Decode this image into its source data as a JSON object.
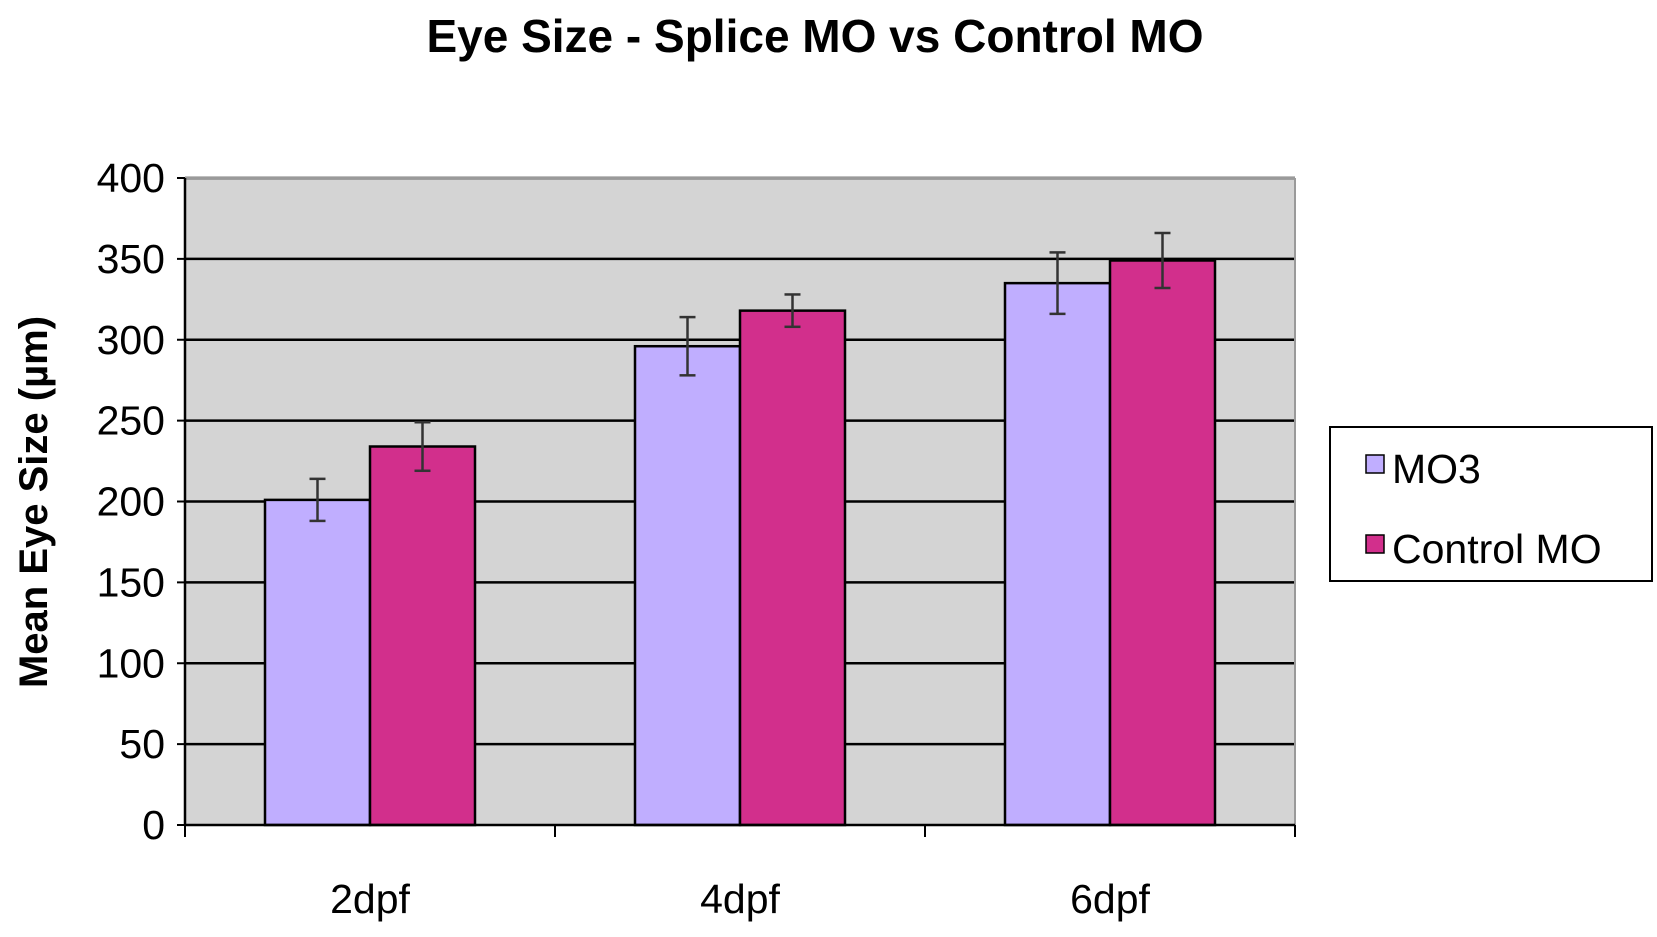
{
  "chart_data": {
    "type": "bar",
    "title": "Eye Size - Splice MO vs Control MO",
    "xlabel": "",
    "ylabel": "Mean Eye Size (µm)",
    "categories": [
      "2dpf",
      "4dpf",
      "6dpf"
    ],
    "series": [
      {
        "name": "MO3",
        "color": "#c0aeff",
        "values": [
          201,
          296,
          335
        ],
        "errors": [
          13,
          18,
          19
        ]
      },
      {
        "name": "Control MO",
        "color": "#d22f8c",
        "values": [
          234,
          318,
          349
        ],
        "errors": [
          15,
          10,
          17
        ]
      }
    ],
    "ylim": [
      0,
      400
    ],
    "yticks": [
      0,
      50,
      100,
      150,
      200,
      250,
      300,
      350,
      400
    ],
    "grid": true,
    "legend_position": "right",
    "colors": {
      "plot_background": "#d4d4d4",
      "gridline": "#000000",
      "bar_outline": "#000000"
    }
  }
}
